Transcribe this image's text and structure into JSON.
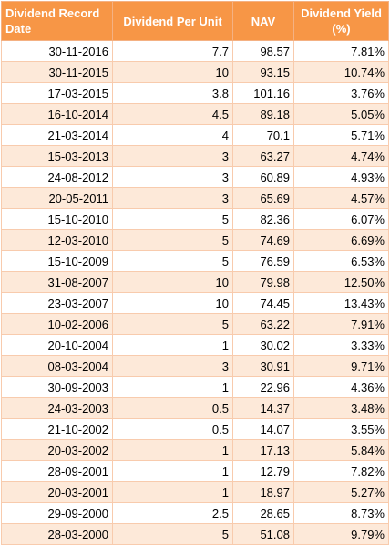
{
  "table": {
    "headers": [
      "Dividend Record Date",
      "Dividend Per Unit",
      "NAV",
      "Dividend Yield (%)"
    ],
    "rows": [
      [
        "30-11-2016",
        "7.7",
        "98.57",
        "7.81%"
      ],
      [
        "30-11-2015",
        "10",
        "93.15",
        "10.74%"
      ],
      [
        "17-03-2015",
        "3.8",
        "101.16",
        "3.76%"
      ],
      [
        "16-10-2014",
        "4.5",
        "89.18",
        "5.05%"
      ],
      [
        "21-03-2014",
        "4",
        "70.1",
        "5.71%"
      ],
      [
        "15-03-2013",
        "3",
        "63.27",
        "4.74%"
      ],
      [
        "24-08-2012",
        "3",
        "60.89",
        "4.93%"
      ],
      [
        "20-05-2011",
        "3",
        "65.69",
        "4.57%"
      ],
      [
        "15-10-2010",
        "5",
        "82.36",
        "6.07%"
      ],
      [
        "12-03-2010",
        "5",
        "74.69",
        "6.69%"
      ],
      [
        "15-10-2009",
        "5",
        "76.59",
        "6.53%"
      ],
      [
        "31-08-2007",
        "10",
        "79.98",
        "12.50%"
      ],
      [
        "23-03-2007",
        "10",
        "74.45",
        "13.43%"
      ],
      [
        "10-02-2006",
        "5",
        "63.22",
        "7.91%"
      ],
      [
        "20-10-2004",
        "1",
        "30.02",
        "3.33%"
      ],
      [
        "08-03-2004",
        "3",
        "30.91",
        "9.71%"
      ],
      [
        "30-09-2003",
        "1",
        "22.96",
        "4.36%"
      ],
      [
        "24-03-2003",
        "0.5",
        "14.37",
        "3.48%"
      ],
      [
        "21-10-2002",
        "0.5",
        "14.07",
        "3.55%"
      ],
      [
        "20-03-2002",
        "1",
        "17.13",
        "5.84%"
      ],
      [
        "28-09-2001",
        "1",
        "12.79",
        "7.82%"
      ],
      [
        "20-03-2001",
        "1",
        "18.97",
        "5.27%"
      ],
      [
        "29-09-2000",
        "2.5",
        "28.65",
        "8.73%"
      ],
      [
        "28-03-2000",
        "5",
        "51.08",
        "9.79%"
      ]
    ]
  },
  "colors": {
    "header_bg": "#f79646",
    "band": "#fde9d9",
    "border": "#f8cbad"
  }
}
